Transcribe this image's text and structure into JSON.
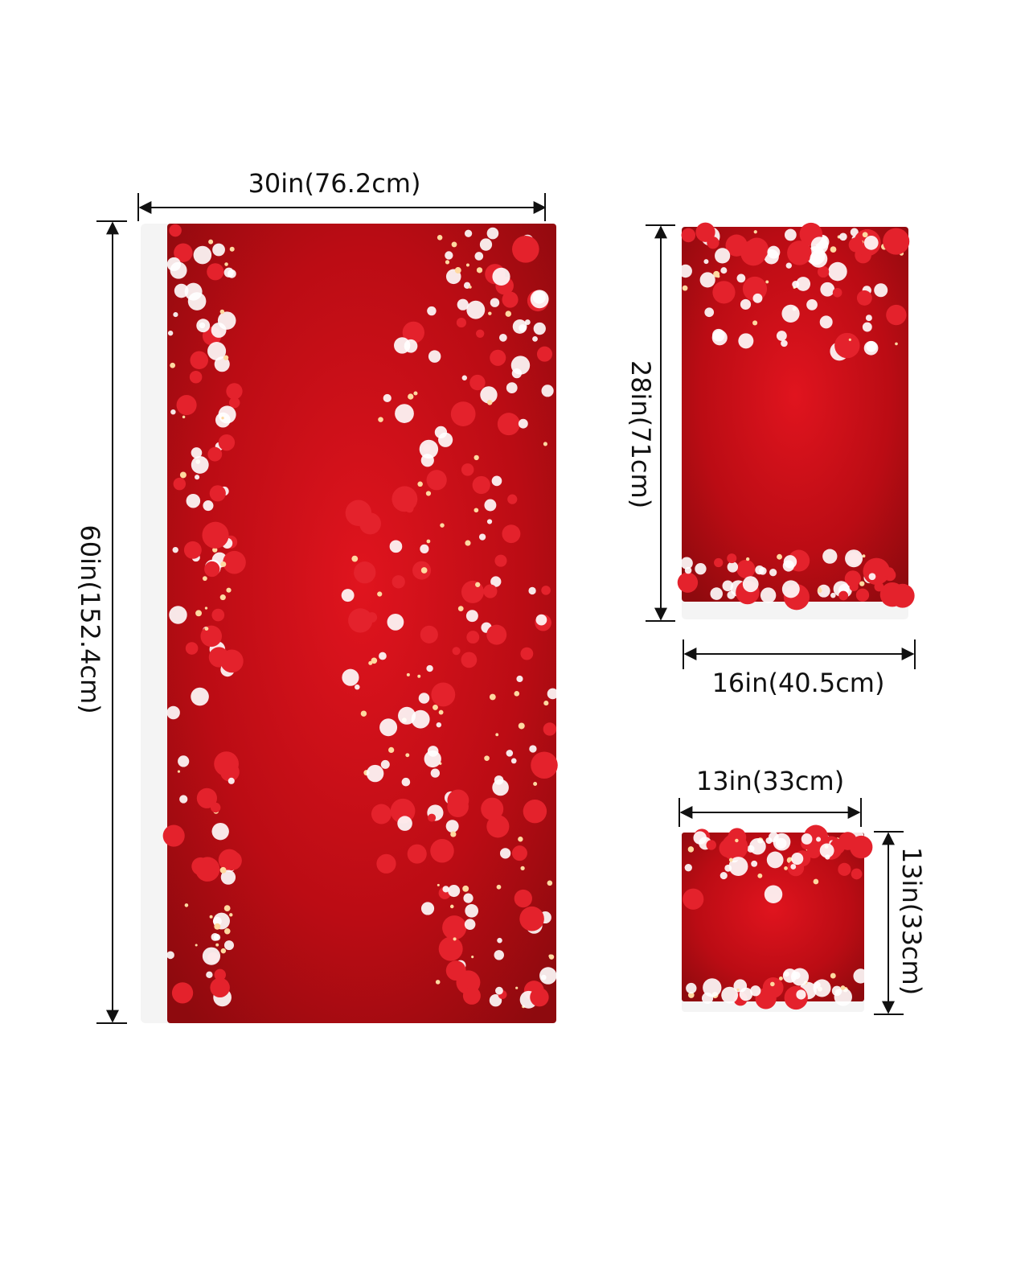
{
  "towels": [
    {
      "width_label": "30in(76.2cm)",
      "height_label": "60in(152.4cm)"
    },
    {
      "width_label": "16in(40.5cm)",
      "height_label": "28in(71cm)"
    },
    {
      "width_label": "13in(33cm)",
      "height_label": "13in(33cm)"
    }
  ]
}
